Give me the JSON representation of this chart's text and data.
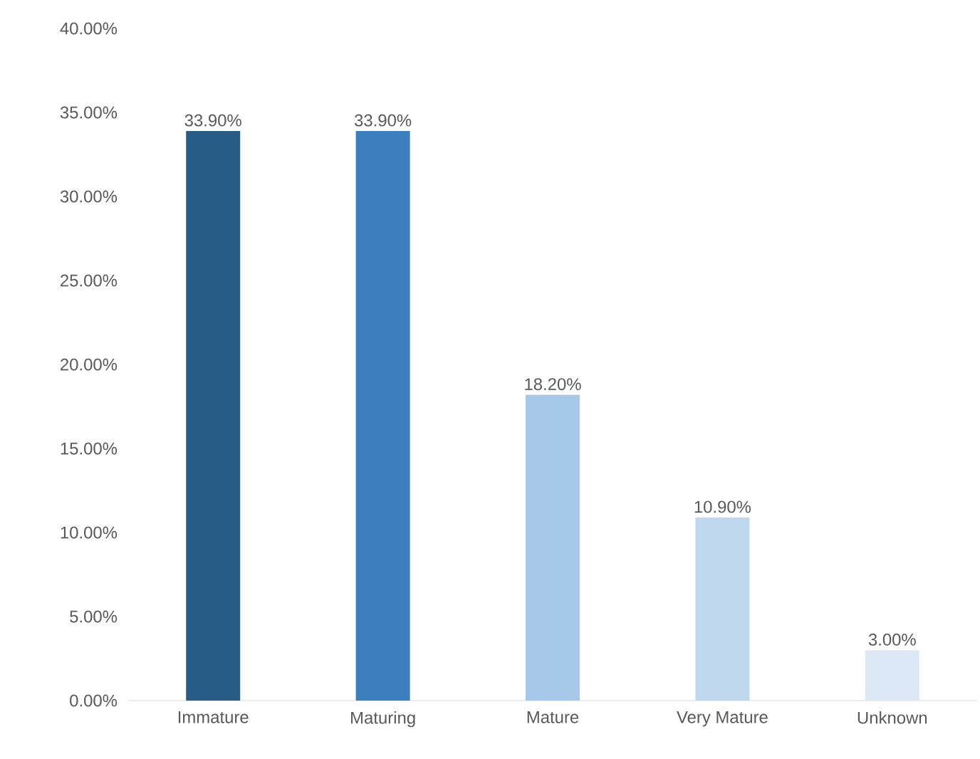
{
  "chart_data": {
    "type": "bar",
    "categories": [
      "Immature",
      "Maturing",
      "Mature",
      "Very Mature",
      "Unknown"
    ],
    "values": [
      33.9,
      33.9,
      18.2,
      10.9,
      3.0
    ],
    "colors": [
      "#265c86",
      "#3b7fbf",
      "#a6c9e9",
      "#bfd8ee",
      "#dce8f5"
    ],
    "value_labels": [
      "33.90%",
      "33.90%",
      "18.20%",
      "10.90%",
      "3.00%"
    ],
    "ylim": [
      0,
      40
    ],
    "yticks": [
      {
        "value": 0,
        "label": "0.00%"
      },
      {
        "value": 5,
        "label": "5.00%"
      },
      {
        "value": 10,
        "label": "10.00%"
      },
      {
        "value": 15,
        "label": "15.00%"
      },
      {
        "value": 20,
        "label": "20.00%"
      },
      {
        "value": 25,
        "label": "25.00%"
      },
      {
        "value": 30,
        "label": "30.00%"
      },
      {
        "value": 35,
        "label": "35.00%"
      },
      {
        "value": 40,
        "label": "40.00%"
      }
    ]
  }
}
